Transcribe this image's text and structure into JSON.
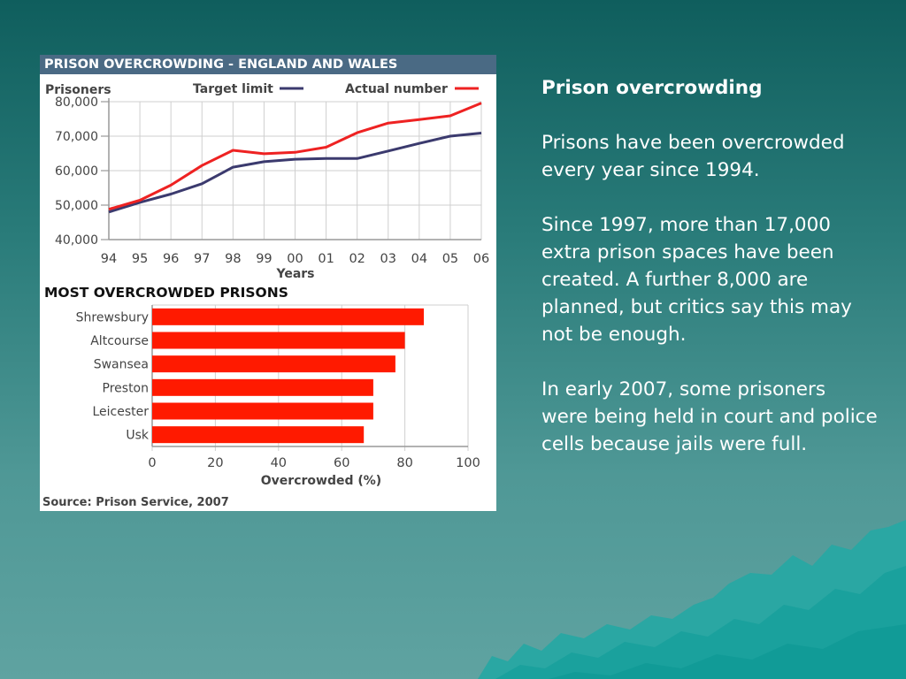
{
  "slide": {
    "heading": "Prison overcrowding",
    "paragraphs": [
      "Prisons have been overcrowded every year since 1994.",
      "Since 1997, more than 17,000 extra prison spaces have been created. A further 8,000 are planned, but critics say this may not be enough.",
      "In early 2007, some prisoners were being held in court and police cells because jails were full."
    ]
  },
  "figure": {
    "title": "PRISON OVERCROWDING - ENGLAND AND WALES",
    "source": "Source: Prison Service, 2007"
  },
  "colors": {
    "target": "#3b3a6e",
    "actual": "#ee2222",
    "bars": "#ff1a00",
    "title_bar": "#4a6a84"
  },
  "chart_data": [
    {
      "type": "line",
      "ylabel": "Prisoners",
      "xlabel": "Years",
      "x": [
        "94",
        "95",
        "96",
        "97",
        "98",
        "99",
        "00",
        "01",
        "02",
        "03",
        "04",
        "05",
        "06"
      ],
      "ylim": [
        40000,
        80000
      ],
      "yticks": [
        40000,
        50000,
        60000,
        70000,
        80000
      ],
      "ytick_labels": [
        "40,000",
        "50,000",
        "60,000",
        "70,000",
        "80,000"
      ],
      "grid": true,
      "legend": "top",
      "series": [
        {
          "name": "Target limit",
          "values": [
            48000,
            50800,
            53200,
            56200,
            61000,
            62600,
            63300,
            63500,
            63500,
            65700,
            67900,
            70000,
            70900
          ]
        },
        {
          "name": "Actual number",
          "values": [
            48800,
            51400,
            55800,
            61500,
            65900,
            64900,
            65300,
            66800,
            71000,
            73800,
            74800,
            75900,
            79600
          ]
        }
      ]
    },
    {
      "type": "bar",
      "orientation": "horizontal",
      "title": "MOST OVERCROWDED PRISONS",
      "xlabel": "Overcrowded (%)",
      "categories": [
        "Shrewsbury",
        "Altcourse",
        "Swansea",
        "Preston",
        "Leicester",
        "Usk"
      ],
      "values": [
        86,
        80,
        77,
        70,
        70,
        67
      ],
      "xlim": [
        0,
        100
      ],
      "xticks": [
        0,
        20,
        40,
        60,
        80,
        100
      ],
      "grid": true
    }
  ]
}
